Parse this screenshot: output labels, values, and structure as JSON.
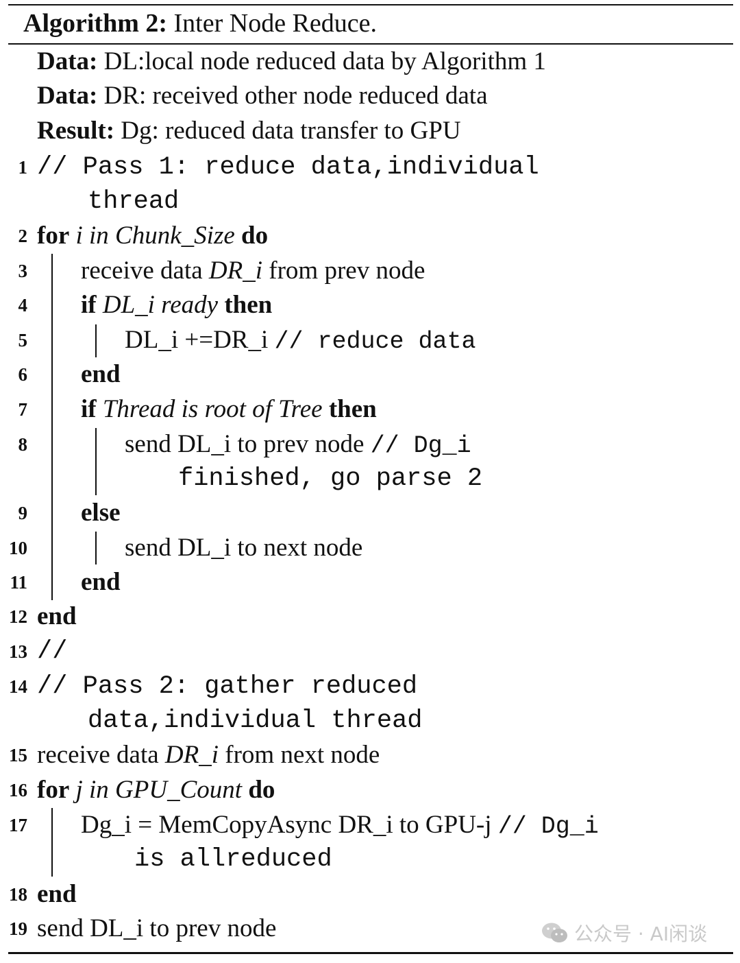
{
  "title": {
    "label": "Algorithm 2:",
    "text": " Inter Node Reduce."
  },
  "io": [
    {
      "kw": "Data:",
      "text": " DL:local node reduced data by Algorithm 1"
    },
    {
      "kw": "Data:",
      "text": " DR: received other node reduced data"
    },
    {
      "kw": "Result:",
      "text": " Dg: reduced data transfer to GPU"
    }
  ],
  "lines": {
    "l1": {
      "num": "1",
      "a": "// Pass 1: reduce data,individual",
      "b": "thread"
    },
    "l2": {
      "num": "2",
      "kw1": "for",
      "it": " i in Chunk_Size ",
      "kw2": "do"
    },
    "l3": {
      "num": "3",
      "t1": "receive data ",
      "it": "DR_i",
      "t2": " from prev node"
    },
    "l4": {
      "num": "4",
      "kw1": "if",
      "it": " DL_i ready ",
      "kw2": "then"
    },
    "l5": {
      "num": "5",
      "t": "DL_i +=DR_i ",
      "mono": "// reduce data"
    },
    "l6": {
      "num": "6",
      "kw": "end"
    },
    "l7": {
      "num": "7",
      "kw1": "if",
      "it": " Thread is root of Tree ",
      "kw2": "then"
    },
    "l8": {
      "num": "8",
      "t": "send DL_i to prev node ",
      "mono": "// Dg_i",
      "mono2": "finished, go parse 2"
    },
    "l9": {
      "num": "9",
      "kw": "else"
    },
    "l10": {
      "num": "10",
      "t": "send DL_i to next node"
    },
    "l11": {
      "num": "11",
      "kw": "end"
    },
    "l12": {
      "num": "12",
      "kw": "end"
    },
    "l13": {
      "num": "13",
      "mono": "//"
    },
    "l14": {
      "num": "14",
      "a": "// Pass 2: gather reduced",
      "b": "data,individual thread"
    },
    "l15": {
      "num": "15",
      "t1": "receive data ",
      "it": "DR_i",
      "t2": " from next node"
    },
    "l16": {
      "num": "16",
      "kw1": "for",
      "it": " j in GPU_Count ",
      "kw2": "do"
    },
    "l17": {
      "num": "17",
      "t": "Dg_i = MemCopyAsync DR_i to GPU-j ",
      "mono": "// Dg_i",
      "mono2": "is allreduced"
    },
    "l18": {
      "num": "18",
      "kw": "end"
    },
    "l19": {
      "num": "19",
      "t": "send DL_i to prev node"
    }
  },
  "watermark": {
    "text": "公众号 · AI闲谈",
    "icon": "wechat-icon"
  }
}
